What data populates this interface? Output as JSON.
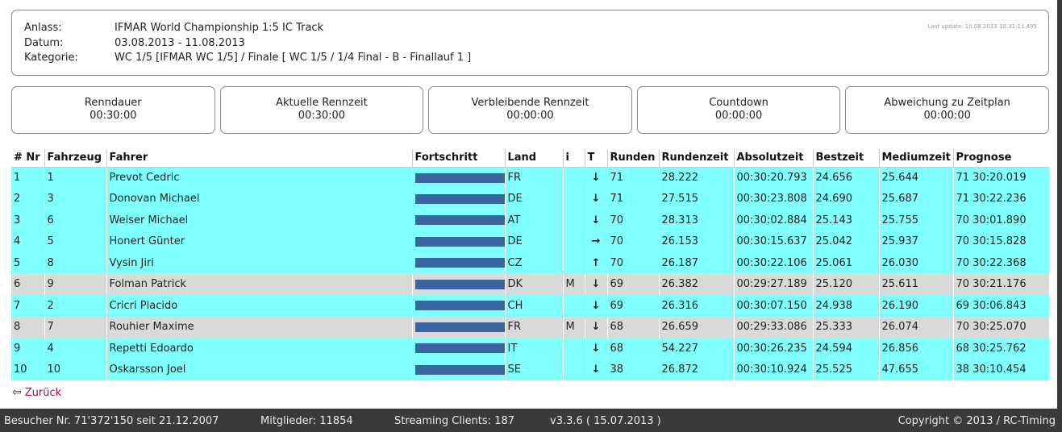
{
  "info": {
    "anlass_label": "Anlass:",
    "anlass_value": "IFMAR World Championship 1:5 IC Track",
    "datum_label": "Datum:",
    "datum_value": "03.08.2013 - 11.08.2013",
    "kategorie_label": "Kategorie:",
    "kategorie_value": "WC 1/5 [IFMAR WC 1/5] / Finale [ WC 1/5 / 1/4 Final - B - Finallauf 1 ]",
    "last_update": "Last update: 10.08.2013 10:31:11.495"
  },
  "timers": [
    {
      "label": "Renndauer",
      "value": "00:30:00"
    },
    {
      "label": "Aktuelle Rennzeit",
      "value": "00:30:00"
    },
    {
      "label": "Verbleibende Rennzeit",
      "value": "00:00:00"
    },
    {
      "label": "Countdown",
      "value": "00:00:00"
    },
    {
      "label": "Abweichung zu Zeitplan",
      "value": "00:00:00"
    }
  ],
  "table": {
    "headers": [
      "# Nr",
      "Fahrzeug",
      "Fahrer",
      "Fortschritt",
      "Land",
      "i",
      "T",
      "Runden",
      "Rundenzeit",
      "Absolutzeit",
      "Bestzeit",
      "Mediumzeit",
      "Prognose"
    ],
    "rows": [
      {
        "nr": "1",
        "fahrzeug": "1",
        "fahrer": "Prevot Cedric",
        "progress": 1.0,
        "land": "FR",
        "i": "",
        "trend": "down",
        "runden": "71",
        "rundenzeit": "28.222",
        "absolutzeit": "00:30:20.793",
        "bestzeit": "24.656",
        "mediumzeit": "25.644",
        "prognose": "71 30:20.019",
        "color": "cyan"
      },
      {
        "nr": "2",
        "fahrzeug": "3",
        "fahrer": "Donovan Michael",
        "progress": 1.0,
        "land": "DE",
        "i": "",
        "trend": "down",
        "runden": "71",
        "rundenzeit": "27.515",
        "absolutzeit": "00:30:23.808",
        "bestzeit": "24.690",
        "mediumzeit": "25.687",
        "prognose": "71 30:22.236",
        "color": "cyan"
      },
      {
        "nr": "3",
        "fahrzeug": "6",
        "fahrer": "Weiser Michael",
        "progress": 1.0,
        "land": "AT",
        "i": "",
        "trend": "down",
        "runden": "70",
        "rundenzeit": "28.313",
        "absolutzeit": "00:30:02.884",
        "bestzeit": "25.143",
        "mediumzeit": "25.755",
        "prognose": "70 30:01.890",
        "color": "cyan"
      },
      {
        "nr": "4",
        "fahrzeug": "5",
        "fahrer": "Honert Günter",
        "progress": 1.0,
        "land": "DE",
        "i": "",
        "trend": "right",
        "runden": "70",
        "rundenzeit": "26.153",
        "absolutzeit": "00:30:15.637",
        "bestzeit": "25.042",
        "mediumzeit": "25.937",
        "prognose": "70 30:15.828",
        "color": "cyan"
      },
      {
        "nr": "5",
        "fahrzeug": "8",
        "fahrer": "Vysin Jiri",
        "progress": 1.0,
        "land": "CZ",
        "i": "",
        "trend": "up",
        "runden": "70",
        "rundenzeit": "26.187",
        "absolutzeit": "00:30:22.106",
        "bestzeit": "25.061",
        "mediumzeit": "26.030",
        "prognose": "70 30:22.368",
        "color": "cyan"
      },
      {
        "nr": "6",
        "fahrzeug": "9",
        "fahrer": "Folman Patrick",
        "progress": 1.0,
        "land": "DK",
        "i": "M",
        "trend": "down",
        "runden": "69",
        "rundenzeit": "26.382",
        "absolutzeit": "00:29:27.189",
        "bestzeit": "25.120",
        "mediumzeit": "25.611",
        "prognose": "70 30:21.176",
        "color": "grey"
      },
      {
        "nr": "7",
        "fahrzeug": "2",
        "fahrer": "Cricri Placido",
        "progress": 1.0,
        "land": "CH",
        "i": "",
        "trend": "down",
        "runden": "69",
        "rundenzeit": "26.316",
        "absolutzeit": "00:30:07.150",
        "bestzeit": "24.938",
        "mediumzeit": "26.190",
        "prognose": "69 30:06.843",
        "color": "cyan"
      },
      {
        "nr": "8",
        "fahrzeug": "7",
        "fahrer": "Rouhier Maxime",
        "progress": 1.0,
        "land": "FR",
        "i": "M",
        "trend": "down",
        "runden": "68",
        "rundenzeit": "26.659",
        "absolutzeit": "00:29:33.086",
        "bestzeit": "25.333",
        "mediumzeit": "26.074",
        "prognose": "70 30:25.070",
        "color": "grey"
      },
      {
        "nr": "9",
        "fahrzeug": "4",
        "fahrer": "Repetti Edoardo",
        "progress": 1.0,
        "land": "IT",
        "i": "",
        "trend": "down",
        "runden": "68",
        "rundenzeit": "54.227",
        "absolutzeit": "00:30:26.235",
        "bestzeit": "24.594",
        "mediumzeit": "26.856",
        "prognose": "68 30:25.762",
        "color": "cyan"
      },
      {
        "nr": "10",
        "fahrzeug": "10",
        "fahrer": "Oskarsson Joel",
        "progress": 1.0,
        "land": "SE",
        "i": "",
        "trend": "down",
        "runden": "38",
        "rundenzeit": "26.872",
        "absolutzeit": "00:30:10.924",
        "bestzeit": "25.525",
        "mediumzeit": "47.655",
        "prognose": "38 30:10.454",
        "color": "cyan"
      }
    ]
  },
  "back": {
    "icon": "arrow-left-icon",
    "label": "Zurück"
  },
  "footer": {
    "visitors": "Besucher Nr. 71'372'150 seit 21.12.2007",
    "members": "Mitglieder: 11854",
    "streaming": "Streaming Clients: 187",
    "version": "v3.3.6 ( 15.07.2013 )",
    "copyright": "Copyright © 2013 / RC-Timing"
  }
}
